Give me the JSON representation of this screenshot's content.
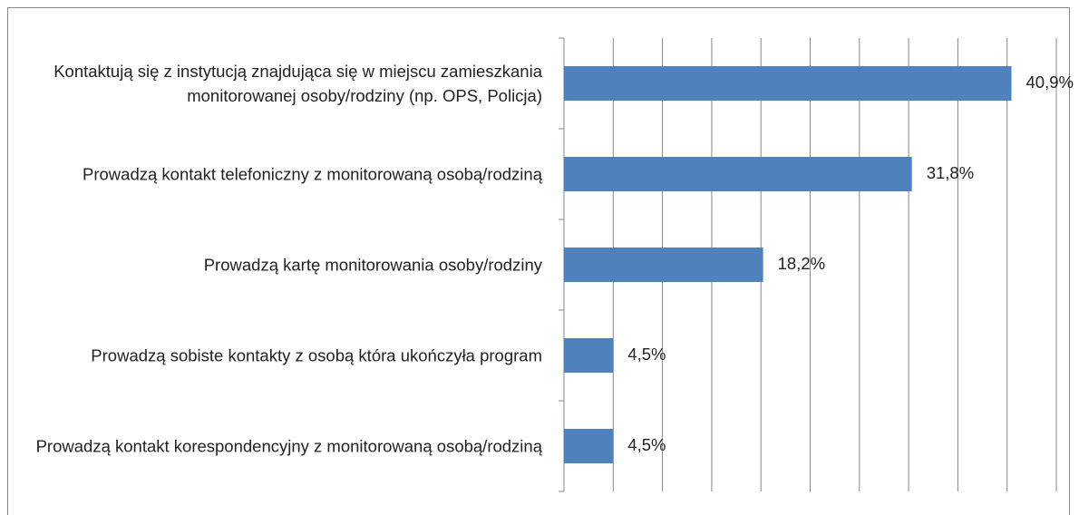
{
  "chart_data": {
    "type": "barh",
    "categories": [
      "Kontaktują się z instytucją znajdująca się w miejscu zamieszkania monitorowanej osoby/rodziny (np. OPS, Policja)",
      "Prowadzą kontakt telefoniczny z monitorowaną osobą/rodziną",
      "Prowadzą kartę monitorowania osoby/rodziny",
      "Prowadzą sobiste kontakty z osobą która ukończyła program",
      "Prowadzą kontakt korespondencyjny z monitorowaną osobą/rodziną"
    ],
    "values": [
      40.9,
      31.8,
      18.2,
      4.5,
      4.5
    ],
    "value_labels": [
      "40,9%",
      "31,8%",
      "18,2%",
      "4,5%",
      "4,5%"
    ],
    "color": "#4f81bd",
    "xlim": [
      0,
      45
    ],
    "xticks": [
      0,
      4.5,
      9,
      13.5,
      18,
      22.5,
      27,
      31.5,
      36,
      40.5,
      45
    ],
    "grid": true
  }
}
